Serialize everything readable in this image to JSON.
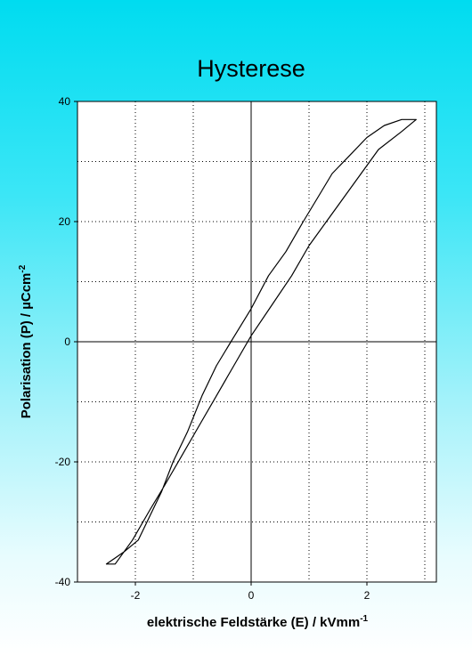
{
  "chart_data": {
    "type": "line",
    "title": "Hysterese",
    "xlabel": {
      "base": "elektrische Feldstärke (E) / kVmm",
      "sup": "-1"
    },
    "ylabel": {
      "base": "Polarisation (P) / µCcm",
      "sup": "-2"
    },
    "xlim": [
      -3,
      3.2
    ],
    "ylim": [
      -40,
      40
    ],
    "x_ticks": [
      -2,
      0,
      2
    ],
    "y_ticks": [
      -40,
      -20,
      0,
      20,
      40
    ],
    "x_tick_labels": [
      "-2",
      "0",
      "2"
    ],
    "y_tick_labels": [
      "-40",
      "-20",
      "0",
      "20",
      "40"
    ],
    "grid": true,
    "grid_style": "dotted",
    "series": [
      {
        "color": "#000000",
        "x": [
          2.85,
          2.6,
          2.3,
          2.0,
          1.7,
          1.4,
          1.15,
          0.9,
          0.6,
          0.3,
          0.0,
          -0.35,
          -0.6,
          -0.85,
          -1.1,
          -1.35,
          -1.55,
          -1.75,
          -1.95,
          -2.2,
          -2.5,
          -2.35,
          -2.05,
          -1.75,
          -1.5,
          -1.2,
          -0.9,
          -0.6,
          -0.3,
          0.0,
          0.35,
          0.7,
          1.0,
          1.3,
          1.6,
          1.9,
          2.2,
          2.6,
          2.85
        ],
        "y": [
          37,
          37,
          36,
          34,
          31,
          28,
          24,
          20,
          15,
          11,
          5.5,
          0,
          -4,
          -9,
          -15,
          -20,
          -25,
          -29,
          -33,
          -35,
          -37,
          -37,
          -33,
          -28,
          -24,
          -19,
          -14,
          -9,
          -4,
          1,
          6,
          11,
          16,
          20,
          24,
          28,
          32,
          35,
          37
        ]
      }
    ]
  }
}
